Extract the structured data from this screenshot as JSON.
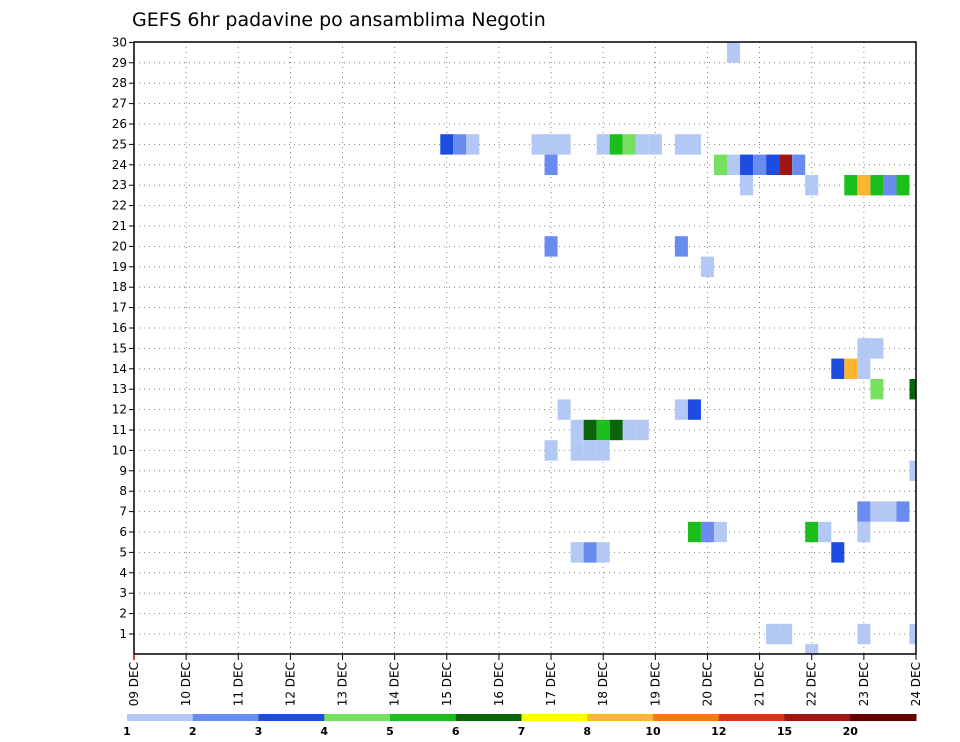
{
  "chart_data": {
    "type": "heatmap",
    "title": "GEFS 6hr padavine po ansamblima Negotin",
    "y_members": [
      1,
      2,
      3,
      4,
      5,
      6,
      7,
      8,
      9,
      10,
      11,
      12,
      13,
      14,
      15,
      16,
      17,
      18,
      19,
      20,
      21,
      22,
      23,
      24,
      25,
      26,
      27,
      28,
      29,
      30
    ],
    "y_ticks": [
      "1",
      "2",
      "3",
      "4",
      "5",
      "6",
      "7",
      "8",
      "9",
      "10",
      "11",
      "12",
      "13",
      "14",
      "15",
      "16",
      "17",
      "18",
      "19",
      "20",
      "21",
      "22",
      "23",
      "24",
      "25",
      "26",
      "27",
      "28",
      "29",
      "30"
    ],
    "x_dates": [
      "09 DEC",
      "10 DEC",
      "11 DEC",
      "12 DEC",
      "13 DEC",
      "14 DEC",
      "15 DEC",
      "16 DEC",
      "17 DEC",
      "18 DEC",
      "19 DEC",
      "20 DEC",
      "21 DEC",
      "22 DEC",
      "23 DEC",
      "24 DEC"
    ],
    "x_range_days": [
      0,
      15
    ],
    "grid": true,
    "legend": {
      "position": "bottom",
      "thresholds": [
        "1",
        "2",
        "3",
        "4",
        "5",
        "6",
        "7",
        "8",
        "10",
        "12",
        "15",
        "20"
      ],
      "colors": [
        "#b4c8f5",
        "#6a8cf0",
        "#1e4be0",
        "#78e060",
        "#1cbe1c",
        "#0a640a",
        "#ffff00",
        "#ffb432",
        "#ff7814",
        "#e03214",
        "#a01414",
        "#640000"
      ]
    },
    "cells": [
      {
        "day": 11.5,
        "member": 29.5,
        "color": "#b4c8f5"
      },
      {
        "day": 6.0,
        "member": 25.0,
        "color": "#1e4be0"
      },
      {
        "day": 6.25,
        "member": 25.0,
        "color": "#6a8cf0"
      },
      {
        "day": 6.5,
        "member": 25.0,
        "color": "#b4c8f5"
      },
      {
        "day": 7.75,
        "member": 25.0,
        "color": "#b4c8f5"
      },
      {
        "day": 8.0,
        "member": 25.0,
        "color": "#b4c8f5"
      },
      {
        "day": 8.25,
        "member": 25.0,
        "color": "#b4c8f5"
      },
      {
        "day": 9.0,
        "member": 25.0,
        "color": "#b4c8f5"
      },
      {
        "day": 9.25,
        "member": 25.0,
        "color": "#1cbe1c"
      },
      {
        "day": 9.5,
        "member": 25.0,
        "color": "#78e060"
      },
      {
        "day": 9.75,
        "member": 25.0,
        "color": "#b4c8f5"
      },
      {
        "day": 10.0,
        "member": 25.0,
        "color": "#b4c8f5"
      },
      {
        "day": 10.5,
        "member": 25.0,
        "color": "#b4c8f5"
      },
      {
        "day": 10.75,
        "member": 25.0,
        "color": "#b4c8f5"
      },
      {
        "day": 8.0,
        "member": 24.0,
        "color": "#6a8cf0"
      },
      {
        "day": 11.25,
        "member": 24.0,
        "color": "#78e060"
      },
      {
        "day": 11.5,
        "member": 24.0,
        "color": "#b4c8f5"
      },
      {
        "day": 11.75,
        "member": 24.0,
        "color": "#1e4be0"
      },
      {
        "day": 12.0,
        "member": 24.0,
        "color": "#6a8cf0"
      },
      {
        "day": 12.25,
        "member": 24.0,
        "color": "#1e4be0"
      },
      {
        "day": 12.5,
        "member": 24.0,
        "color": "#a01414"
      },
      {
        "day": 12.75,
        "member": 24.0,
        "color": "#6a8cf0"
      },
      {
        "day": 11.75,
        "member": 23.0,
        "color": "#b4c8f5"
      },
      {
        "day": 13.0,
        "member": 23.0,
        "color": "#b4c8f5"
      },
      {
        "day": 13.75,
        "member": 23.0,
        "color": "#1cbe1c"
      },
      {
        "day": 14.0,
        "member": 23.0,
        "color": "#ffb432"
      },
      {
        "day": 14.25,
        "member": 23.0,
        "color": "#1cbe1c"
      },
      {
        "day": 14.5,
        "member": 23.0,
        "color": "#6a8cf0"
      },
      {
        "day": 14.75,
        "member": 23.0,
        "color": "#1cbe1c"
      },
      {
        "day": 8.0,
        "member": 20.0,
        "color": "#6a8cf0"
      },
      {
        "day": 10.5,
        "member": 20.0,
        "color": "#6a8cf0"
      },
      {
        "day": 11.0,
        "member": 19.0,
        "color": "#b4c8f5"
      },
      {
        "day": 14.0,
        "member": 15.0,
        "color": "#b4c8f5"
      },
      {
        "day": 14.25,
        "member": 15.0,
        "color": "#b4c8f5"
      },
      {
        "day": 13.5,
        "member": 14.0,
        "color": "#1e4be0"
      },
      {
        "day": 13.75,
        "member": 14.0,
        "color": "#ffb432"
      },
      {
        "day": 14.0,
        "member": 14.0,
        "color": "#b4c8f5"
      },
      {
        "day": 8.25,
        "member": 12.0,
        "color": "#b4c8f5"
      },
      {
        "day": 10.5,
        "member": 12.0,
        "color": "#b4c8f5"
      },
      {
        "day": 10.75,
        "member": 12.0,
        "color": "#1e4be0"
      },
      {
        "day": 14.25,
        "member": 13.0,
        "color": "#78e060"
      },
      {
        "day": 15.0,
        "member": 13.0,
        "color": "#0a640a"
      },
      {
        "day": 8.5,
        "member": 11.0,
        "color": "#b4c8f5"
      },
      {
        "day": 8.75,
        "member": 11.0,
        "color": "#0a640a"
      },
      {
        "day": 9.0,
        "member": 11.0,
        "color": "#1cbe1c"
      },
      {
        "day": 9.25,
        "member": 11.0,
        "color": "#0a640a"
      },
      {
        "day": 9.5,
        "member": 11.0,
        "color": "#b4c8f5"
      },
      {
        "day": 9.75,
        "member": 11.0,
        "color": "#b4c8f5"
      },
      {
        "day": 8.0,
        "member": 10.0,
        "color": "#b4c8f5"
      },
      {
        "day": 8.5,
        "member": 10.0,
        "color": "#b4c8f5"
      },
      {
        "day": 8.75,
        "member": 10.0,
        "color": "#b4c8f5"
      },
      {
        "day": 9.0,
        "member": 10.0,
        "color": "#b4c8f5"
      },
      {
        "day": 15.0,
        "member": 9.0,
        "color": "#b4c8f5"
      },
      {
        "day": 14.0,
        "member": 7.0,
        "color": "#6a8cf0"
      },
      {
        "day": 14.25,
        "member": 7.0,
        "color": "#b4c8f5"
      },
      {
        "day": 14.5,
        "member": 7.0,
        "color": "#b4c8f5"
      },
      {
        "day": 14.75,
        "member": 7.0,
        "color": "#6a8cf0"
      },
      {
        "day": 10.75,
        "member": 6.0,
        "color": "#1cbe1c"
      },
      {
        "day": 11.0,
        "member": 6.0,
        "color": "#6a8cf0"
      },
      {
        "day": 11.25,
        "member": 6.0,
        "color": "#b4c8f5"
      },
      {
        "day": 13.0,
        "member": 6.0,
        "color": "#1cbe1c"
      },
      {
        "day": 13.25,
        "member": 6.0,
        "color": "#b4c8f5"
      },
      {
        "day": 14.0,
        "member": 6.0,
        "color": "#b4c8f5"
      },
      {
        "day": 8.5,
        "member": 5.0,
        "color": "#b4c8f5"
      },
      {
        "day": 8.75,
        "member": 5.0,
        "color": "#6a8cf0"
      },
      {
        "day": 9.0,
        "member": 5.0,
        "color": "#b4c8f5"
      },
      {
        "day": 13.5,
        "member": 5.0,
        "color": "#1e4be0"
      },
      {
        "day": 12.25,
        "member": 1.0,
        "color": "#b4c8f5"
      },
      {
        "day": 12.5,
        "member": 1.0,
        "color": "#b4c8f5"
      },
      {
        "day": 14.0,
        "member": 1.0,
        "color": "#b4c8f5"
      },
      {
        "day": 15.0,
        "member": 1.0,
        "color": "#b4c8f5"
      },
      {
        "day": 13.0,
        "member": 0.0,
        "color": "#b4c8f5"
      }
    ]
  }
}
